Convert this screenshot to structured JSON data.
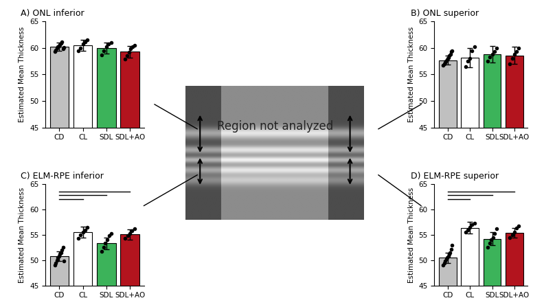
{
  "chart_data": [
    {
      "type": "bar",
      "title": "A) ONL inferior",
      "ylabel": "Estimated Mean Thickness",
      "categories": [
        "CD",
        "CL",
        "SDL",
        "SDL+AO"
      ],
      "values": [
        60.2,
        60.5,
        60.0,
        59.3
      ],
      "errors": [
        0.8,
        1.1,
        1.0,
        1.1
      ],
      "points": [
        [
          59.3,
          59.6,
          60.0,
          60.2,
          60.4,
          60.6,
          60.9,
          61.2,
          59.9,
          60.1
        ],
        [
          59.5,
          60.0,
          60.8,
          61.2,
          61.5
        ],
        [
          58.7,
          59.5,
          60.2,
          60.7,
          61.0
        ],
        [
          57.9,
          58.5,
          59.2,
          59.8,
          60.2,
          60.5
        ]
      ],
      "colors": [
        "#c0c0c0",
        "#ffffff",
        "#3cb35a",
        "#b3141e"
      ],
      "ylim": [
        45,
        65
      ],
      "yticks": [
        45,
        50,
        55,
        60,
        65
      ],
      "comparisons": []
    },
    {
      "type": "bar",
      "title": "B) ONL superior",
      "ylabel": "Estimated Mean Thickness",
      "categories": [
        "CD",
        "CL",
        "SDL",
        "SDL+AO"
      ],
      "values": [
        57.7,
        58.2,
        58.8,
        58.6
      ],
      "errors": [
        0.8,
        1.8,
        1.6,
        1.6
      ],
      "points": [
        [
          56.8,
          57.0,
          57.3,
          57.5,
          57.8,
          58.0,
          58.2,
          58.5,
          58.8,
          59.3,
          59.5
        ],
        [
          56.5,
          57.5,
          58.0,
          59.5,
          60.2
        ],
        [
          57.5,
          58.3,
          58.8,
          59.3,
          60.0
        ],
        [
          57.0,
          58.0,
          58.8,
          59.3,
          60.0
        ]
      ],
      "colors": [
        "#c0c0c0",
        "#ffffff",
        "#3cb35a",
        "#b3141e"
      ],
      "ylim": [
        45,
        65
      ],
      "yticks": [
        45,
        50,
        55,
        60,
        65
      ],
      "comparisons": []
    },
    {
      "type": "bar",
      "title": "C) ELM-RPE inferior",
      "ylabel": "Estimated Mean Thickness",
      "categories": [
        "CD",
        "CL",
        "SDL",
        "SDL+AO"
      ],
      "values": [
        50.8,
        55.5,
        53.3,
        55.1
      ],
      "errors": [
        1.0,
        1.1,
        1.1,
        1.0
      ],
      "points": [
        [
          49.0,
          49.5,
          50.0,
          50.5,
          50.8,
          51.2,
          51.5,
          52.0,
          52.5,
          49.8
        ],
        [
          54.3,
          55.0,
          55.5,
          56.0,
          56.5
        ],
        [
          51.8,
          52.5,
          53.3,
          54.0,
          54.8,
          55.3
        ],
        [
          54.3,
          54.8,
          55.3,
          55.8,
          56.2
        ]
      ],
      "colors": [
        "#c0c0c0",
        "#ffffff",
        "#3cb35a",
        "#b3141e"
      ],
      "ylim": [
        45,
        65
      ],
      "yticks": [
        45,
        50,
        55,
        60,
        65
      ],
      "comparisons": [
        [
          "CD",
          "CL"
        ],
        [
          "CD",
          "SDL"
        ],
        [
          "CD",
          "SDL+AO"
        ]
      ]
    },
    {
      "type": "bar",
      "title": "D) ELM-RPE superior",
      "ylabel": "Estimated Mean Thickness",
      "categories": [
        "CD",
        "CL",
        "SDL",
        "SDL+AO"
      ],
      "values": [
        50.5,
        56.4,
        54.2,
        55.4
      ],
      "errors": [
        1.0,
        1.2,
        1.3,
        1.0
      ],
      "points": [
        [
          49.0,
          49.5,
          49.8,
          50.2,
          50.5,
          50.8,
          51.2,
          51.5,
          52.2,
          53.0
        ],
        [
          55.5,
          56.0,
          56.5,
          57.0,
          57.3
        ],
        [
          52.5,
          53.3,
          54.0,
          54.5,
          55.3,
          56.2
        ],
        [
          54.5,
          55.0,
          55.5,
          56.3,
          56.8
        ]
      ],
      "colors": [
        "#c0c0c0",
        "#ffffff",
        "#3cb35a",
        "#b3141e"
      ],
      "ylim": [
        45,
        65
      ],
      "yticks": [
        45,
        50,
        55,
        60,
        65
      ],
      "comparisons": [
        [
          "CD",
          "CL"
        ],
        [
          "CD",
          "SDL"
        ],
        [
          "CD",
          "SDL+AO"
        ]
      ]
    }
  ],
  "center_image": {
    "label": "Region not analyzed"
  }
}
